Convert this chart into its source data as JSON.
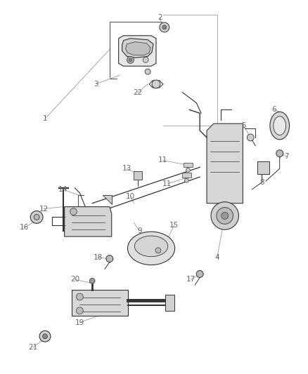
{
  "bg_color": "#ffffff",
  "fg_color": "#333333",
  "fig_width": 4.38,
  "fig_height": 5.33,
  "dpi": 100,
  "line_color": "#555555",
  "dark_color": "#333333",
  "label_color": "#666666",
  "label_fs": 7.5
}
